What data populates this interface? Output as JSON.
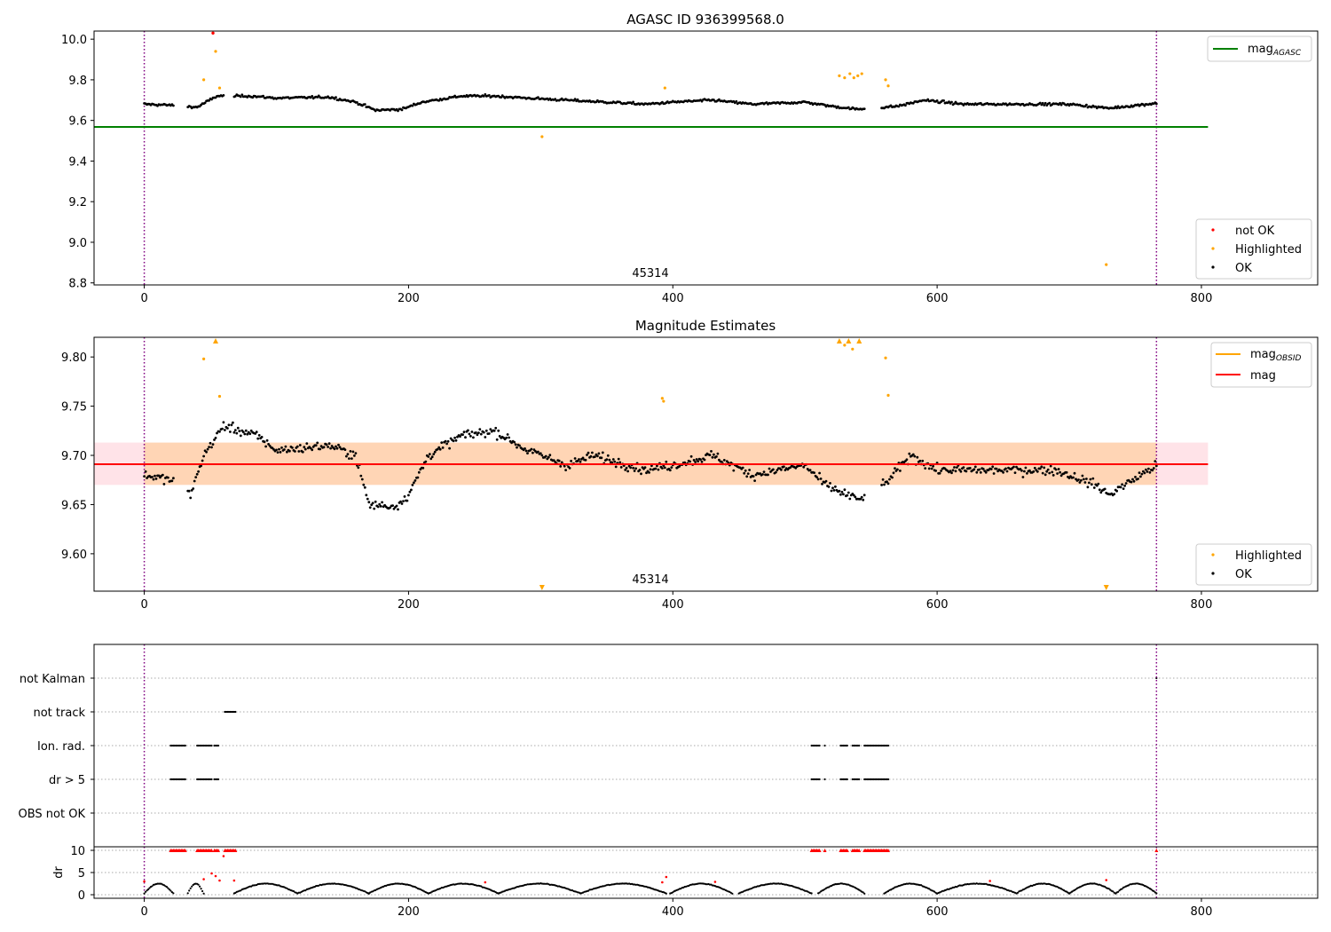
{
  "chart_data": [
    {
      "type": "scatter",
      "title": "AGASC ID 936399568.0",
      "xlim": [
        -38,
        888
      ],
      "ylim": [
        8.79,
        10.04
      ],
      "xticks": [
        "0",
        "200",
        "400",
        "600",
        "800"
      ],
      "yticks": [
        "10.0",
        "9.8",
        "9.6",
        "9.4",
        "9.2",
        "9.0",
        "8.8"
      ],
      "annotation": "45314",
      "vlines": [
        0,
        766
      ],
      "hline": {
        "name": "mag",
        "subscript": "AGASC",
        "y": 9.568,
        "x_end": 805,
        "color": "#008000"
      },
      "legend_top": "top-right",
      "legend_bottom": "lower-right",
      "series": [
        {
          "name": "not OK",
          "color": "#ff0000"
        },
        {
          "name": "Highlighted",
          "color": "#ffa500",
          "points": [
            [
              45,
              9.8
            ],
            [
              52,
              10.03
            ],
            [
              54,
              9.94
            ],
            [
              57,
              9.76
            ],
            [
              301,
              9.52
            ],
            [
              394,
              9.76
            ],
            [
              526,
              9.82
            ],
            [
              530,
              9.81
            ],
            [
              534,
              9.83
            ],
            [
              537,
              9.81
            ],
            [
              540,
              9.82
            ],
            [
              543,
              9.83
            ],
            [
              561,
              9.8
            ],
            [
              563,
              9.77
            ],
            [
              728,
              8.89
            ]
          ]
        },
        {
          "name": "OK",
          "color": "#000000"
        }
      ],
      "ok_trend": [
        [
          0,
          9.68
        ],
        [
          20,
          9.675
        ],
        [
          40,
          9.665
        ],
        [
          55,
          9.72
        ],
        [
          80,
          9.72
        ],
        [
          100,
          9.71
        ],
        [
          140,
          9.715
        ],
        [
          160,
          9.69
        ],
        [
          175,
          9.65
        ],
        [
          195,
          9.655
        ],
        [
          210,
          9.69
        ],
        [
          240,
          9.72
        ],
        [
          265,
          9.72
        ],
        [
          290,
          9.71
        ],
        [
          320,
          9.7
        ],
        [
          350,
          9.69
        ],
        [
          380,
          9.68
        ],
        [
          400,
          9.69
        ],
        [
          430,
          9.7
        ],
        [
          460,
          9.68
        ],
        [
          500,
          9.69
        ],
        [
          520,
          9.67
        ],
        [
          540,
          9.655
        ],
        [
          570,
          9.67
        ],
        [
          590,
          9.7
        ],
        [
          620,
          9.68
        ],
        [
          660,
          9.68
        ],
        [
          700,
          9.68
        ],
        [
          730,
          9.66
        ],
        [
          766,
          9.685
        ]
      ],
      "ok_gaps": [
        [
          22,
          33
        ],
        [
          60,
          68
        ],
        [
          545,
          558
        ]
      ],
      "ok_spread": 0.022
    },
    {
      "type": "scatter",
      "title": "Magnitude Estimates",
      "xlim": [
        -38,
        888
      ],
      "ylim": [
        9.562,
        9.82
      ],
      "xticks": [
        "0",
        "200",
        "400",
        "600",
        "800"
      ],
      "yticks": [
        "9.80",
        "9.75",
        "9.70",
        "9.65",
        "9.60"
      ],
      "annotation": "45314",
      "vlines": [
        0,
        766
      ],
      "lines": [
        {
          "name": "mag",
          "subscript": "OBSID",
          "color": "#ffa500"
        },
        {
          "name": "mag",
          "color": "#ff0000",
          "y": 9.691
        }
      ],
      "bands": [
        {
          "y0": 9.67,
          "y1": 9.713,
          "x0": -38,
          "x1": 805,
          "color": "#ffc0cb"
        },
        {
          "y0": 9.67,
          "y1": 9.713,
          "x0": 0,
          "x1": 766,
          "color": "#ffa500"
        }
      ],
      "legend_top": "top-right",
      "legend_bottom": "lower-right",
      "series": [
        {
          "name": "Highlighted",
          "color": "#ffa500",
          "points": [
            [
              45,
              9.798
            ],
            [
              57,
              9.76
            ],
            [
              392,
              9.758
            ],
            [
              393,
              9.755
            ],
            [
              530,
              9.812
            ],
            [
              536,
              9.808
            ],
            [
              561,
              9.799
            ],
            [
              563,
              9.761
            ]
          ],
          "up_markers": [
            54,
            526,
            533,
            541
          ],
          "down_markers": [
            301,
            728
          ]
        },
        {
          "name": "OK",
          "color": "#000000"
        }
      ],
      "ok_trend": [
        [
          0,
          9.68
        ],
        [
          20,
          9.675
        ],
        [
          35,
          9.66
        ],
        [
          45,
          9.7
        ],
        [
          60,
          9.73
        ],
        [
          85,
          9.72
        ],
        [
          100,
          9.705
        ],
        [
          140,
          9.71
        ],
        [
          160,
          9.7
        ],
        [
          170,
          9.65
        ],
        [
          190,
          9.648
        ],
        [
          200,
          9.66
        ],
        [
          215,
          9.7
        ],
        [
          240,
          9.72
        ],
        [
          265,
          9.725
        ],
        [
          290,
          9.705
        ],
        [
          320,
          9.69
        ],
        [
          340,
          9.7
        ],
        [
          380,
          9.685
        ],
        [
          400,
          9.69
        ],
        [
          430,
          9.7
        ],
        [
          460,
          9.68
        ],
        [
          500,
          9.69
        ],
        [
          515,
          9.67
        ],
        [
          540,
          9.655
        ],
        [
          560,
          9.67
        ],
        [
          580,
          9.7
        ],
        [
          600,
          9.685
        ],
        [
          640,
          9.685
        ],
        [
          690,
          9.685
        ],
        [
          720,
          9.67
        ],
        [
          730,
          9.66
        ],
        [
          766,
          9.69
        ]
      ],
      "ok_gaps": [
        [
          22,
          33
        ],
        [
          545,
          558
        ]
      ],
      "ok_spread": 0.018
    },
    {
      "type": "scatter",
      "xlim": [
        -38,
        888
      ],
      "xticks": [
        "0",
        "200",
        "400",
        "600",
        "800"
      ],
      "vlines": [
        0,
        766
      ],
      "flag_labels": [
        "not Kalman",
        "not track",
        "Ion. rad.",
        "dr > 5",
        "OBS not OK"
      ],
      "flags": {
        "not Kalman": [
          [
            766,
            766
          ]
        ],
        "not track": [
          [
            61,
            69
          ]
        ],
        "Ion. rad.": [
          [
            20,
            31
          ],
          [
            40,
            51
          ],
          [
            53,
            56
          ],
          [
            505,
            511
          ],
          [
            515,
            515
          ],
          [
            527,
            532
          ],
          [
            536,
            541
          ],
          [
            545,
            563
          ]
        ],
        "dr > 5": [
          [
            20,
            31
          ],
          [
            40,
            51
          ],
          [
            53,
            56
          ],
          [
            505,
            511
          ],
          [
            515,
            515
          ],
          [
            527,
            532
          ],
          [
            536,
            541
          ],
          [
            545,
            563
          ]
        ],
        "OBS not OK": []
      },
      "dr": {
        "ylabel": "dr",
        "ylim": [
          0,
          10
        ],
        "yticks": [
          "10",
          "5",
          "0"
        ],
        "cap_markers": [
          [
            20,
            31
          ],
          [
            40,
            51
          ],
          [
            53,
            56
          ],
          [
            61,
            69
          ],
          [
            505,
            511
          ],
          [
            515,
            515
          ],
          [
            527,
            532
          ],
          [
            536,
            541
          ],
          [
            545,
            563
          ],
          [
            766,
            766
          ]
        ],
        "red_points": [
          [
            0,
            3.0
          ],
          [
            45,
            3.5
          ],
          [
            51,
            4.8
          ],
          [
            54,
            4.2
          ],
          [
            57,
            3.2
          ],
          [
            60,
            8.7
          ],
          [
            68,
            3.2
          ],
          [
            258,
            2.8
          ],
          [
            392,
            2.8
          ],
          [
            395,
            4.0
          ],
          [
            432,
            2.9
          ],
          [
            640,
            3.1
          ],
          [
            728,
            3.3
          ]
        ],
        "segments": [
          [
            0,
            22
          ],
          [
            33,
            45
          ],
          [
            68,
            116
          ],
          [
            116,
            170
          ],
          [
            170,
            215
          ],
          [
            215,
            268
          ],
          [
            268,
            330
          ],
          [
            330,
            395
          ],
          [
            398,
            445
          ],
          [
            450,
            505
          ],
          [
            510,
            545
          ],
          [
            560,
            600
          ],
          [
            600,
            660
          ],
          [
            660,
            700
          ],
          [
            700,
            735
          ],
          [
            735,
            766
          ]
        ]
      }
    }
  ]
}
